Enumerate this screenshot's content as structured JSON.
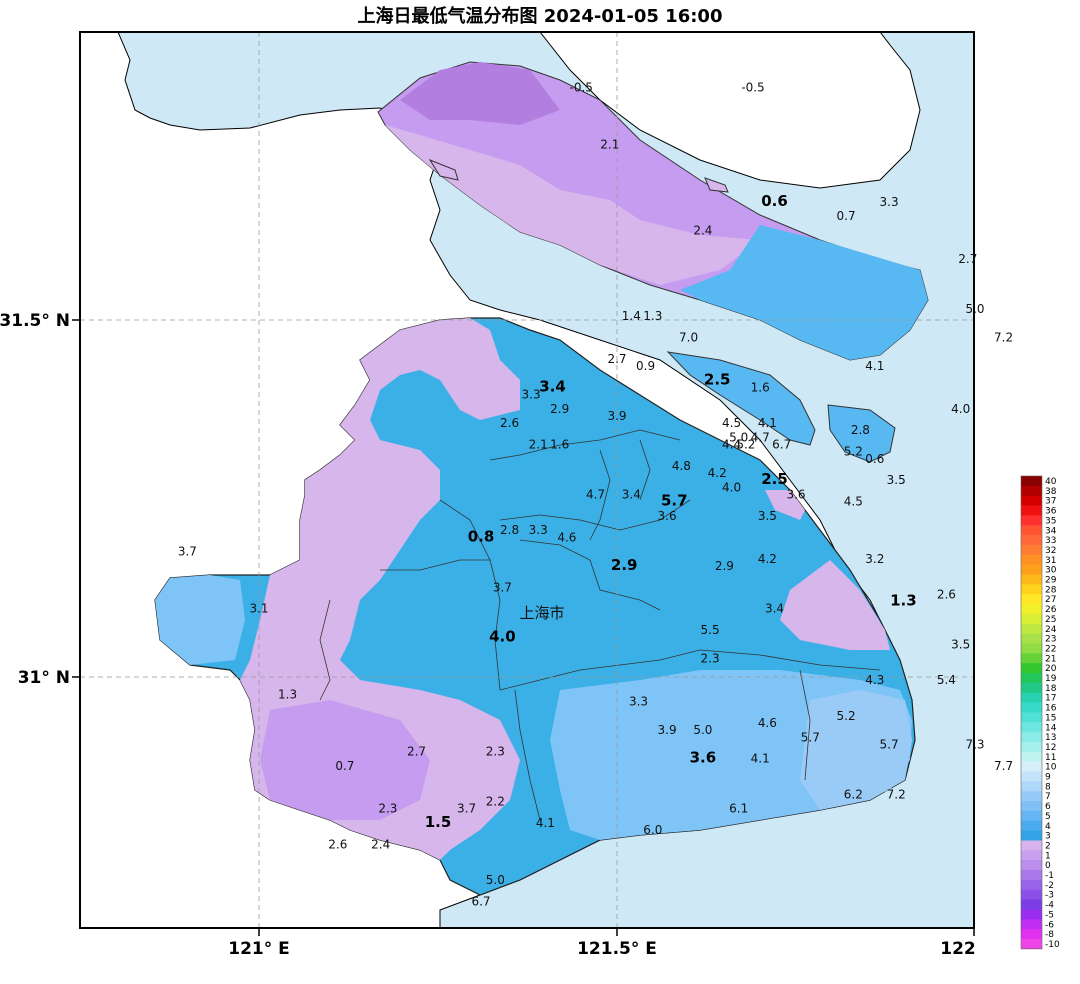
{
  "title": "上海日最低气温分布图 2024-01-05 16:00",
  "axes": {
    "lat_labels": [
      "31.5° N",
      "31° N"
    ],
    "lon_labels": [
      "121° E",
      "121.5° E",
      "122"
    ]
  },
  "city_label": "上海市",
  "colors": {
    "sea": "#cfe8f5",
    "land_bg": "#ffffff",
    "band_m1": "#b27ee0",
    "band_0": "#c59cf0",
    "band_1": "#d7b6ec",
    "band_3": "#3bb0e6",
    "band_4": "#58b8f2",
    "band_5": "#7ec4f6",
    "band_6": "#9acbf7"
  },
  "stations": [
    {
      "text": "-0.5",
      "lon": 121.45,
      "lat": 31.82
    },
    {
      "text": "-0.5",
      "lon": 121.69,
      "lat": 31.82
    },
    {
      "text": "2.1",
      "lon": 121.49,
      "lat": 31.74
    },
    {
      "text": "0.6",
      "lon": 121.72,
      "lat": 31.66,
      "big": true
    },
    {
      "text": "0.7",
      "lon": 121.82,
      "lat": 31.64
    },
    {
      "text": "3.3",
      "lon": 121.88,
      "lat": 31.66
    },
    {
      "text": "2.4",
      "lon": 121.62,
      "lat": 31.62
    },
    {
      "text": "2.7",
      "lon": 121.99,
      "lat": 31.58
    },
    {
      "text": "5.0",
      "lon": 122.0,
      "lat": 31.51
    },
    {
      "text": "7.2",
      "lon": 122.04,
      "lat": 31.47
    },
    {
      "text": "1.4",
      "lon": 121.52,
      "lat": 31.5
    },
    {
      "text": "1.3",
      "lon": 121.55,
      "lat": 31.5
    },
    {
      "text": "7.0",
      "lon": 121.6,
      "lat": 31.47
    },
    {
      "text": "2.7",
      "lon": 121.5,
      "lat": 31.44
    },
    {
      "text": "0.9",
      "lon": 121.54,
      "lat": 31.43
    },
    {
      "text": "4.1",
      "lon": 121.86,
      "lat": 31.43
    },
    {
      "text": "3.3",
      "lon": 121.38,
      "lat": 31.39
    },
    {
      "text": "3.4",
      "lon": 121.41,
      "lat": 31.4,
      "big": true
    },
    {
      "text": "2.5",
      "lon": 121.64,
      "lat": 31.41,
      "big": true
    },
    {
      "text": "1.6",
      "lon": 121.7,
      "lat": 31.4
    },
    {
      "text": "4.0",
      "lon": 121.98,
      "lat": 31.37
    },
    {
      "text": "2.9",
      "lon": 121.42,
      "lat": 31.37
    },
    {
      "text": "3.9",
      "lon": 121.5,
      "lat": 31.36
    },
    {
      "text": "4.5",
      "lon": 121.66,
      "lat": 31.35
    },
    {
      "text": "4.1",
      "lon": 121.71,
      "lat": 31.35
    },
    {
      "text": "2.6",
      "lon": 121.35,
      "lat": 31.35
    },
    {
      "text": "5.0",
      "lon": 121.67,
      "lat": 31.33
    },
    {
      "text": "4.7",
      "lon": 121.7,
      "lat": 31.33
    },
    {
      "text": "2.8",
      "lon": 121.84,
      "lat": 31.34
    },
    {
      "text": "4.4",
      "lon": 121.66,
      "lat": 31.32
    },
    {
      "text": "5.2",
      "lon": 121.68,
      "lat": 31.32
    },
    {
      "text": "6.7",
      "lon": 121.73,
      "lat": 31.32
    },
    {
      "text": "2.1",
      "lon": 121.39,
      "lat": 31.32
    },
    {
      "text": "1.6",
      "lon": 121.42,
      "lat": 31.32
    },
    {
      "text": "5.2",
      "lon": 121.83,
      "lat": 31.31
    },
    {
      "text": "0.6",
      "lon": 121.86,
      "lat": 31.3
    },
    {
      "text": "4.8",
      "lon": 121.59,
      "lat": 31.29
    },
    {
      "text": "4.2",
      "lon": 121.64,
      "lat": 31.28
    },
    {
      "text": "2.5",
      "lon": 121.72,
      "lat": 31.27,
      "big": true
    },
    {
      "text": "3.5",
      "lon": 121.89,
      "lat": 31.27
    },
    {
      "text": "4.0",
      "lon": 121.66,
      "lat": 31.26
    },
    {
      "text": "3.6",
      "lon": 121.75,
      "lat": 31.25
    },
    {
      "text": "4.7",
      "lon": 121.47,
      "lat": 31.25
    },
    {
      "text": "3.4",
      "lon": 121.52,
      "lat": 31.25
    },
    {
      "text": "5.7",
      "lon": 121.58,
      "lat": 31.24,
      "big": true
    },
    {
      "text": "4.5",
      "lon": 121.83,
      "lat": 31.24
    },
    {
      "text": "3.6",
      "lon": 121.57,
      "lat": 31.22
    },
    {
      "text": "3.5",
      "lon": 121.71,
      "lat": 31.22
    },
    {
      "text": "2.8",
      "lon": 121.35,
      "lat": 31.2
    },
    {
      "text": "3.3",
      "lon": 121.39,
      "lat": 31.2
    },
    {
      "text": "4.6",
      "lon": 121.43,
      "lat": 31.19
    },
    {
      "text": "0.8",
      "lon": 121.31,
      "lat": 31.19,
      "big": true
    },
    {
      "text": "3.7",
      "lon": 120.9,
      "lat": 31.17
    },
    {
      "text": "2.9",
      "lon": 121.51,
      "lat": 31.15,
      "big": true
    },
    {
      "text": "2.9",
      "lon": 121.65,
      "lat": 31.15
    },
    {
      "text": "4.2",
      "lon": 121.71,
      "lat": 31.16
    },
    {
      "text": "3.2",
      "lon": 121.86,
      "lat": 31.16
    },
    {
      "text": "3.7",
      "lon": 121.34,
      "lat": 31.12
    },
    {
      "text": "2.6",
      "lon": 121.96,
      "lat": 31.11
    },
    {
      "text": "3.1",
      "lon": 121.0,
      "lat": 31.09
    },
    {
      "text": "1.3",
      "lon": 121.9,
      "lat": 31.1,
      "big": true
    },
    {
      "text": "3.4",
      "lon": 121.72,
      "lat": 31.09
    },
    {
      "text": "4.0",
      "lon": 121.34,
      "lat": 31.05,
      "big": true
    },
    {
      "text": "5.5",
      "lon": 121.63,
      "lat": 31.06
    },
    {
      "text": "3.5",
      "lon": 121.98,
      "lat": 31.04
    },
    {
      "text": "2.3",
      "lon": 121.63,
      "lat": 31.02
    },
    {
      "text": "4.3",
      "lon": 121.86,
      "lat": 30.99
    },
    {
      "text": "5.4",
      "lon": 121.96,
      "lat": 30.99
    },
    {
      "text": "1.3",
      "lon": 121.04,
      "lat": 30.97
    },
    {
      "text": "3.3",
      "lon": 121.53,
      "lat": 30.96
    },
    {
      "text": "5.2",
      "lon": 121.82,
      "lat": 30.94
    },
    {
      "text": "3.9",
      "lon": 121.57,
      "lat": 30.92
    },
    {
      "text": "5.0",
      "lon": 121.62,
      "lat": 30.92
    },
    {
      "text": "4.6",
      "lon": 121.71,
      "lat": 30.93
    },
    {
      "text": "5.7",
      "lon": 121.77,
      "lat": 30.91
    },
    {
      "text": "5.7",
      "lon": 121.88,
      "lat": 30.9
    },
    {
      "text": "7.3",
      "lon": 122.0,
      "lat": 30.9
    },
    {
      "text": "2.7",
      "lon": 121.22,
      "lat": 30.89
    },
    {
      "text": "2.3",
      "lon": 121.33,
      "lat": 30.89
    },
    {
      "text": "4.1",
      "lon": 121.7,
      "lat": 30.88
    },
    {
      "text": "3.6",
      "lon": 121.62,
      "lat": 30.88,
      "big": true
    },
    {
      "text": "7.7",
      "lon": 122.04,
      "lat": 30.87
    },
    {
      "text": "0.7",
      "lon": 121.12,
      "lat": 30.87
    },
    {
      "text": "6.2",
      "lon": 121.83,
      "lat": 30.83
    },
    {
      "text": "7.2",
      "lon": 121.89,
      "lat": 30.83
    },
    {
      "text": "2.3",
      "lon": 121.18,
      "lat": 30.81
    },
    {
      "text": "3.7",
      "lon": 121.29,
      "lat": 30.81
    },
    {
      "text": "2.2",
      "lon": 121.33,
      "lat": 30.82
    },
    {
      "text": "6.1",
      "lon": 121.67,
      "lat": 30.81
    },
    {
      "text": "1.5",
      "lon": 121.25,
      "lat": 30.79,
      "big": true
    },
    {
      "text": "4.1",
      "lon": 121.4,
      "lat": 30.79
    },
    {
      "text": "6.0",
      "lon": 121.55,
      "lat": 30.78
    },
    {
      "text": "2.6",
      "lon": 121.11,
      "lat": 30.76
    },
    {
      "text": "2.4",
      "lon": 121.17,
      "lat": 30.76
    },
    {
      "text": "5.0",
      "lon": 121.33,
      "lat": 30.71
    },
    {
      "text": "6.7",
      "lon": 121.31,
      "lat": 30.68
    }
  ],
  "legend": {
    "labels": [
      "40",
      "38",
      "37",
      "36",
      "35",
      "34",
      "33",
      "32",
      "31",
      "30",
      "29",
      "28",
      "27",
      "26",
      "25",
      "24",
      "23",
      "22",
      "21",
      "20",
      "19",
      "18",
      "17",
      "16",
      "15",
      "14",
      "13",
      "12",
      "11",
      "10",
      "9",
      "8",
      "7",
      "6",
      "5",
      "4",
      "3",
      "2",
      "1",
      "0",
      "-1",
      "-2",
      "-3",
      "-4",
      "-5",
      "-6",
      "-8",
      "-10"
    ],
    "colors": [
      "#8b0000",
      "#b00000",
      "#d40000",
      "#f01010",
      "#ff3030",
      "#ff5533",
      "#ff6a3a",
      "#ff7d33",
      "#ff9124",
      "#ffa01a",
      "#ffb81c",
      "#ffd21e",
      "#ffe627",
      "#f2f02a",
      "#d8ef35",
      "#bfe840",
      "#a8e04a",
      "#8fdc44",
      "#66d23a",
      "#33c82e",
      "#22c65a",
      "#21c887",
      "#28d2b0",
      "#35dac8",
      "#4fe0d6",
      "#6ee6e0",
      "#8aebe7",
      "#a5efec",
      "#bff3f0",
      "#d6f0f8",
      "#c5e4fb",
      "#aed7fa",
      "#97cbf7",
      "#80c0f5",
      "#66b6f3",
      "#4aabee",
      "#33a2e6",
      "#d8b4ef",
      "#c9a0ee",
      "#bb8ded",
      "#ab78ec",
      "#9a64ea",
      "#8b50e8",
      "#7c3de6",
      "#9a2ef0",
      "#c02ef2",
      "#e030f0",
      "#f045e6"
    ]
  }
}
